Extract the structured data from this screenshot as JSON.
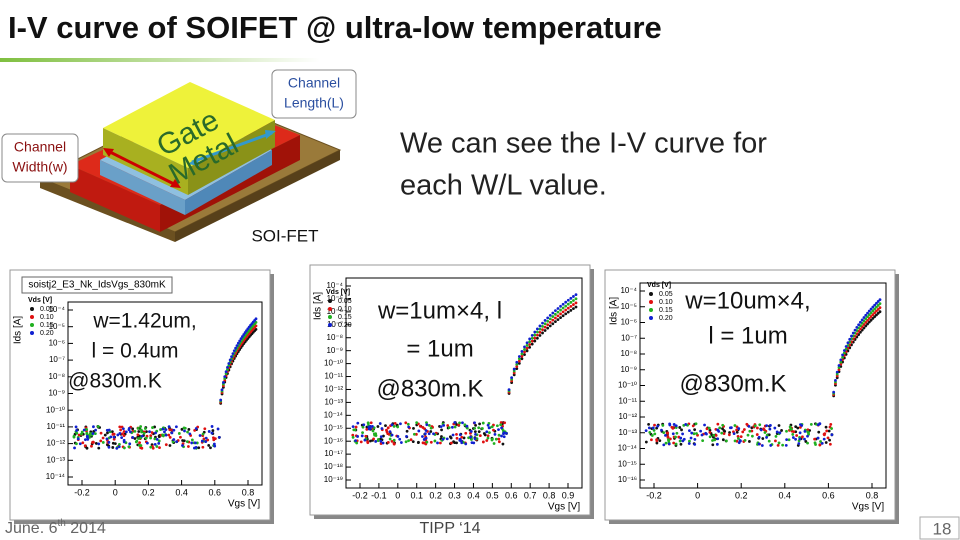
{
  "title": "I-V curve of SOIFET @ ultra-low temperature",
  "diagram": {
    "gate_label": [
      "Gate",
      "Metal"
    ],
    "channel_length": [
      "Channel",
      "Length(L)"
    ],
    "channel_width": [
      "Channel",
      "Width(w)"
    ],
    "device_label": "SOI-FET"
  },
  "description": [
    "We can see the I-V curve for",
    "each W/L value."
  ],
  "plots": [
    {
      "title": "soistj2_E3_Nk_IdsVgs_830mK",
      "ylabel": "Ids [A]",
      "xlabel": "Vgs [V]",
      "legend_title": "Vds [V]",
      "legend": [
        "0.05",
        "0.10",
        "0.15",
        "0.20"
      ],
      "legend_colors": [
        "#111111",
        "#e01010",
        "#20b020",
        "#1020d0"
      ],
      "yticks": [
        "10⁻⁴",
        "10⁻⁵",
        "10⁻⁶",
        "10⁻⁷",
        "10⁻⁸",
        "10⁻⁹",
        "10⁻¹⁰",
        "10⁻¹¹",
        "10⁻¹²",
        "10⁻¹³",
        "10⁻¹⁴"
      ],
      "xticks": [
        "-0.2",
        "0",
        "0.2",
        "0.4",
        "0.6",
        "0.8"
      ],
      "annotation": [
        "w=1.42um,",
        "l = 0.4um",
        "@830m.K"
      ]
    },
    {
      "ylabel": "Ids [A]",
      "xlabel": "Vgs [V]",
      "legend_title": "Vds [V]",
      "legend": [
        "0.05",
        "0.10",
        "0.15",
        "0.20"
      ],
      "legend_colors": [
        "#111111",
        "#e01010",
        "#20b020",
        "#1020d0"
      ],
      "yticks": [
        "10⁻⁴",
        "10⁻⁵",
        "10⁻⁶",
        "10⁻⁷",
        "10⁻⁸",
        "10⁻⁹",
        "10⁻¹⁰",
        "10⁻¹¹",
        "10⁻¹²",
        "10⁻¹³",
        "10⁻¹⁴",
        "10⁻¹⁵",
        "10⁻¹⁶",
        "10⁻¹⁷",
        "10⁻¹⁸",
        "10⁻¹⁹"
      ],
      "xticks": [
        "-0.2",
        "-0.1",
        "0",
        "0.1",
        "0.2",
        "0.3",
        "0.4",
        "0.5",
        "0.6",
        "0.7",
        "0.8",
        "0.9"
      ],
      "annotation": [
        "w=1um×4, l",
        "= 1um",
        "@830m.K"
      ]
    },
    {
      "ylabel": "Ids [A]",
      "xlabel": "Vgs [V]",
      "legend_title": "Vds [V]",
      "legend": [
        "0.05",
        "0.10",
        "0.15",
        "0.20"
      ],
      "legend_colors": [
        "#111111",
        "#e01010",
        "#20b020",
        "#1020d0"
      ],
      "yticks": [
        "10⁻⁴",
        "10⁻⁵",
        "10⁻⁶",
        "10⁻⁷",
        "10⁻⁸",
        "10⁻⁹",
        "10⁻¹⁰",
        "10⁻¹¹",
        "10⁻¹²",
        "10⁻¹³",
        "10⁻¹⁴",
        "10⁻¹⁵",
        "10⁻¹⁶"
      ],
      "xticks": [
        "-0.2",
        "0",
        "0.2",
        "0.4",
        "0.6",
        "0.8"
      ],
      "annotation": [
        "w=10um×4,",
        "l = 1um",
        "@830m.K"
      ]
    }
  ],
  "footer": {
    "date": [
      "June. 6",
      "th",
      " 2014"
    ],
    "conference": "TIPP ‘14",
    "page": "18"
  }
}
